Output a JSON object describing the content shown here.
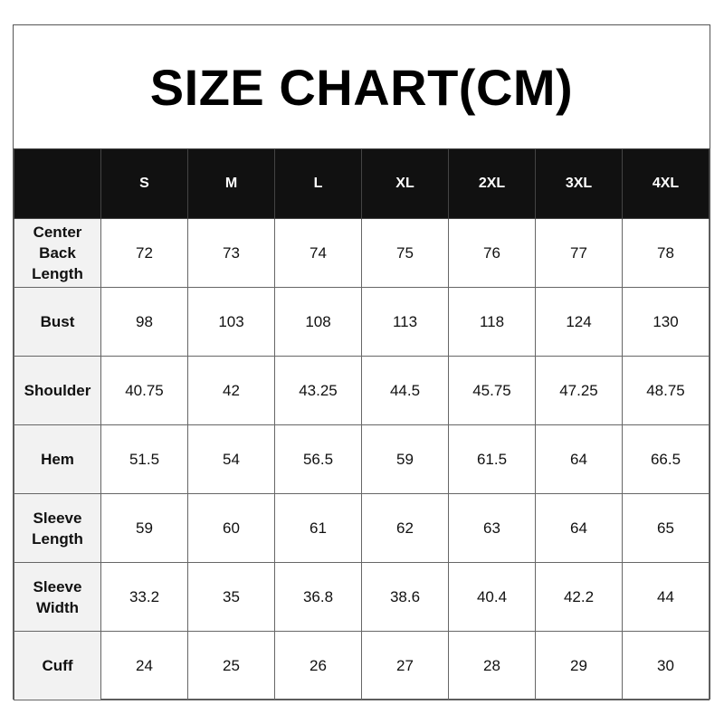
{
  "title": "SIZE CHART(CM)",
  "table": {
    "columns": [
      "S",
      "M",
      "L",
      "XL",
      "2XL",
      "3XL",
      "4XL"
    ],
    "rows": [
      {
        "label": "Center Back Length",
        "values": [
          72,
          73,
          74,
          75,
          76,
          77,
          78
        ]
      },
      {
        "label": "Bust",
        "values": [
          98,
          103,
          108,
          113,
          118,
          124,
          130
        ]
      },
      {
        "label": "Shoulder",
        "values": [
          40.75,
          42,
          43.25,
          44.5,
          45.75,
          47.25,
          48.75
        ]
      },
      {
        "label": "Hem",
        "values": [
          51.5,
          54,
          56.5,
          59,
          61.5,
          64,
          66.5
        ]
      },
      {
        "label": "Sleeve Length",
        "values": [
          59,
          60,
          61,
          62,
          63,
          64,
          65
        ]
      },
      {
        "label": "Sleeve Width",
        "values": [
          33.2,
          35,
          36.8,
          38.6,
          40.4,
          42.2,
          44
        ]
      },
      {
        "label": "Cuff",
        "values": [
          24,
          25,
          26,
          27,
          28,
          29,
          30
        ]
      }
    ]
  }
}
